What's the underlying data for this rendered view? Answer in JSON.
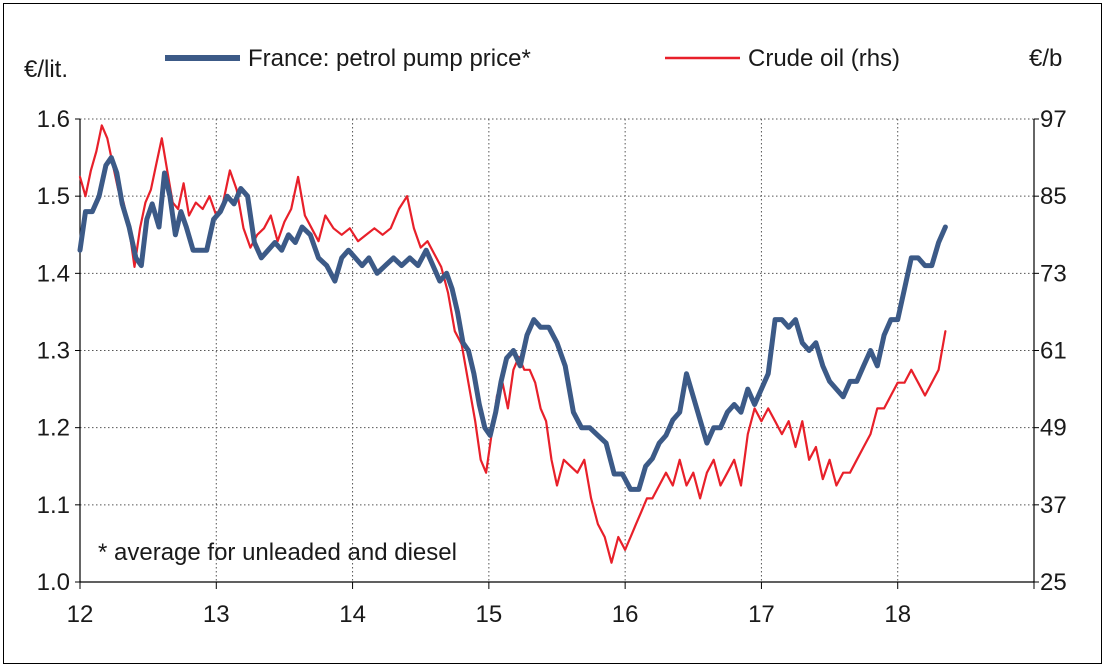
{
  "chart_data": {
    "type": "line",
    "legend": {
      "placement": "top"
    },
    "ylabel_left": "€/lit.",
    "ylabel_right": "€/b",
    "annotation": "* average for unleaded and diesel",
    "x_ticks": [
      "12",
      "13",
      "14",
      "15",
      "16",
      "17",
      "18"
    ],
    "xlim": [
      12,
      19
    ],
    "ylim_left": [
      1.0,
      1.6
    ],
    "ylim_right": [
      25,
      97
    ],
    "y_ticks_left": [
      "1.0",
      "1.1",
      "1.2",
      "1.3",
      "1.4",
      "1.5",
      "1.6"
    ],
    "y_ticks_right": [
      "25",
      "37",
      "49",
      "61",
      "73",
      "85",
      "97"
    ],
    "grid": true,
    "series": [
      {
        "name": "France: petrol pump price*",
        "axis": "left",
        "color": "#3c5a87",
        "x": [
          12.0,
          12.04,
          12.09,
          12.14,
          12.19,
          12.23,
          12.27,
          12.31,
          12.36,
          12.41,
          12.45,
          12.49,
          12.53,
          12.58,
          12.62,
          12.66,
          12.7,
          12.74,
          12.78,
          12.83,
          12.88,
          12.93,
          12.98,
          13.03,
          13.08,
          13.13,
          13.18,
          13.23,
          13.28,
          13.33,
          13.38,
          13.43,
          13.48,
          13.53,
          13.58,
          13.63,
          13.69,
          13.75,
          13.81,
          13.87,
          13.92,
          13.97,
          14.02,
          14.07,
          14.12,
          14.18,
          14.24,
          14.3,
          14.36,
          14.42,
          14.48,
          14.54,
          14.59,
          14.64,
          14.69,
          14.73,
          14.77,
          14.81,
          14.85,
          14.89,
          14.93,
          14.97,
          15.01,
          15.05,
          15.09,
          15.13,
          15.18,
          15.23,
          15.28,
          15.33,
          15.38,
          15.44,
          15.5,
          15.56,
          15.62,
          15.68,
          15.74,
          15.8,
          15.86,
          15.92,
          15.98,
          16.04,
          16.1,
          16.15,
          16.2,
          16.25,
          16.3,
          16.35,
          16.4,
          16.45,
          16.5,
          16.55,
          16.6,
          16.65,
          16.7,
          16.75,
          16.8,
          16.85,
          16.9,
          16.95,
          17.0,
          17.05,
          17.1,
          17.15,
          17.2,
          17.25,
          17.3,
          17.35,
          17.4,
          17.45,
          17.5,
          17.55,
          17.6,
          17.65,
          17.7,
          17.75,
          17.8,
          17.85,
          17.9,
          17.95,
          18.0,
          18.05,
          18.1,
          18.15,
          18.2,
          18.25,
          18.3,
          18.35
        ],
        "values": [
          1.43,
          1.48,
          1.48,
          1.5,
          1.54,
          1.55,
          1.53,
          1.49,
          1.46,
          1.42,
          1.41,
          1.47,
          1.49,
          1.46,
          1.53,
          1.5,
          1.45,
          1.48,
          1.46,
          1.43,
          1.43,
          1.43,
          1.47,
          1.48,
          1.5,
          1.49,
          1.51,
          1.5,
          1.44,
          1.42,
          1.43,
          1.44,
          1.43,
          1.45,
          1.44,
          1.46,
          1.45,
          1.42,
          1.41,
          1.39,
          1.42,
          1.43,
          1.42,
          1.41,
          1.42,
          1.4,
          1.41,
          1.42,
          1.41,
          1.42,
          1.41,
          1.43,
          1.41,
          1.39,
          1.4,
          1.38,
          1.35,
          1.31,
          1.3,
          1.27,
          1.23,
          1.2,
          1.19,
          1.22,
          1.26,
          1.29,
          1.3,
          1.28,
          1.32,
          1.34,
          1.33,
          1.33,
          1.31,
          1.28,
          1.22,
          1.2,
          1.2,
          1.19,
          1.18,
          1.14,
          1.14,
          1.12,
          1.12,
          1.15,
          1.16,
          1.18,
          1.19,
          1.21,
          1.22,
          1.27,
          1.24,
          1.21,
          1.18,
          1.2,
          1.2,
          1.22,
          1.23,
          1.22,
          1.25,
          1.23,
          1.25,
          1.27,
          1.34,
          1.34,
          1.33,
          1.34,
          1.31,
          1.3,
          1.31,
          1.28,
          1.26,
          1.25,
          1.24,
          1.26,
          1.26,
          1.28,
          1.3,
          1.28,
          1.32,
          1.34,
          1.34,
          1.38,
          1.42,
          1.42,
          1.41,
          1.41,
          1.44,
          1.46
        ]
      },
      {
        "name": "Crude oil (rhs)",
        "axis": "right",
        "color": "#e8202a",
        "x": [
          12.0,
          12.04,
          12.08,
          12.12,
          12.16,
          12.2,
          12.24,
          12.28,
          12.32,
          12.36,
          12.4,
          12.44,
          12.48,
          12.52,
          12.56,
          12.6,
          12.64,
          12.68,
          12.72,
          12.76,
          12.8,
          12.85,
          12.9,
          12.95,
          13.0,
          13.05,
          13.1,
          13.15,
          13.2,
          13.25,
          13.3,
          13.35,
          13.4,
          13.45,
          13.5,
          13.55,
          13.6,
          13.65,
          13.7,
          13.75,
          13.8,
          13.86,
          13.92,
          13.98,
          14.04,
          14.1,
          14.16,
          14.22,
          14.28,
          14.34,
          14.4,
          14.45,
          14.5,
          14.55,
          14.6,
          14.65,
          14.7,
          14.75,
          14.8,
          14.85,
          14.9,
          14.94,
          14.98,
          15.02,
          15.06,
          15.1,
          15.14,
          15.18,
          15.22,
          15.26,
          15.3,
          15.34,
          15.38,
          15.42,
          15.46,
          15.5,
          15.55,
          15.6,
          15.65,
          15.7,
          15.75,
          15.8,
          15.85,
          15.9,
          15.95,
          16.0,
          16.04,
          16.08,
          16.12,
          16.16,
          16.2,
          16.25,
          16.3,
          16.35,
          16.4,
          16.45,
          16.5,
          16.55,
          16.6,
          16.65,
          16.7,
          16.75,
          16.8,
          16.85,
          16.9,
          16.95,
          17.0,
          17.05,
          17.1,
          17.15,
          17.2,
          17.25,
          17.3,
          17.35,
          17.4,
          17.45,
          17.5,
          17.55,
          17.6,
          17.65,
          17.7,
          17.75,
          17.8,
          17.85,
          17.9,
          17.95,
          18.0,
          18.05,
          18.1,
          18.15,
          18.2,
          18.25,
          18.3,
          18.35
        ],
        "values": [
          88,
          85,
          89,
          92,
          96,
          94,
          90,
          86,
          84,
          80,
          74,
          80,
          84,
          86,
          90,
          94,
          89,
          84,
          83,
          87,
          82,
          84,
          83,
          85,
          82,
          84,
          89,
          86,
          80,
          77,
          79,
          80,
          82,
          78,
          81,
          83,
          88,
          82,
          80,
          78,
          82,
          80,
          79,
          80,
          78,
          79,
          80,
          79,
          80,
          83,
          85,
          80,
          77,
          78,
          76,
          74,
          70,
          64,
          62,
          56,
          50,
          44,
          42,
          48,
          54,
          56,
          52,
          58,
          60,
          58,
          58,
          56,
          52,
          50,
          44,
          40,
          44,
          43,
          42,
          44,
          38,
          34,
          32,
          28,
          32,
          30,
          32,
          34,
          36,
          38,
          38,
          40,
          42,
          40,
          44,
          40,
          42,
          38,
          42,
          44,
          40,
          42,
          44,
          40,
          48,
          52,
          50,
          52,
          50,
          48,
          50,
          46,
          50,
          44,
          46,
          41,
          44,
          40,
          42,
          42,
          44,
          46,
          48,
          52,
          52,
          54,
          56,
          56,
          58,
          56,
          54,
          56,
          58,
          64
        ]
      }
    ]
  }
}
